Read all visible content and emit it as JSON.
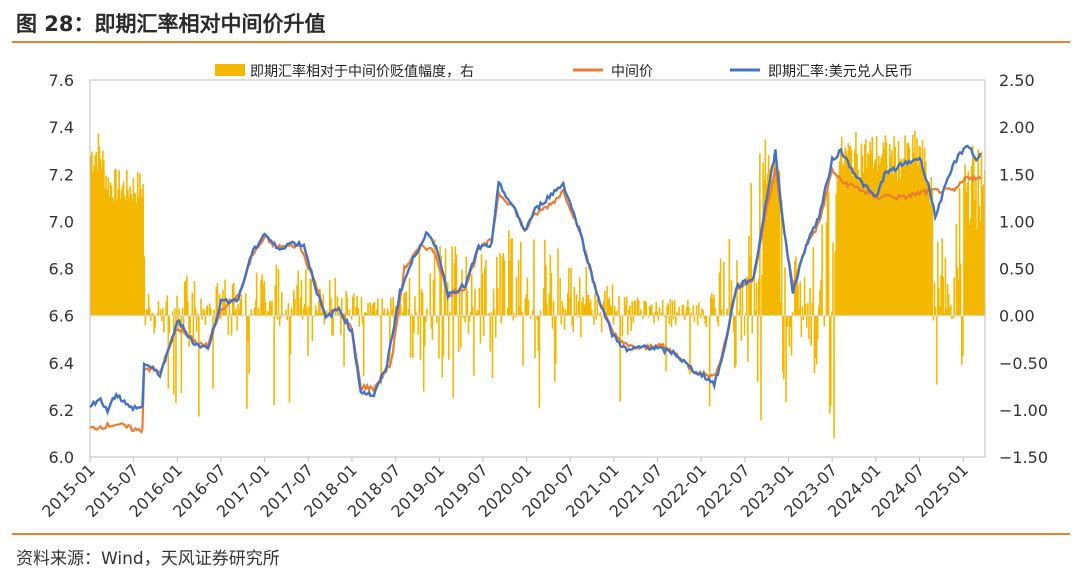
{
  "header": {
    "title": "图 28：即期汇率相对中间价升值"
  },
  "footer": {
    "source": "资料来源：Wind，天风证券研究所"
  },
  "colors": {
    "bars": "#f5b800",
    "mid": "#ed7d31",
    "spot": "#4472c4",
    "accent": "#e8822a"
  },
  "chart_data": {
    "type": "bar+line",
    "title": "即期汇率相对中间价升值",
    "x_labels": [
      "2015-01",
      "2015-07",
      "2016-01",
      "2016-07",
      "2017-01",
      "2017-07",
      "2018-01",
      "2018-07",
      "2019-01",
      "2019-07",
      "2020-01",
      "2020-07",
      "2021-01",
      "2021-07",
      "2022-01",
      "2022-07",
      "2023-01",
      "2023-07",
      "2024-01",
      "2024-07",
      "2025-01"
    ],
    "left_axis": {
      "ylim": [
        6.0,
        7.6
      ],
      "ticks": [
        "6.0",
        "6.2",
        "6.4",
        "6.6",
        "6.8",
        "7.0",
        "7.2",
        "7.4",
        "7.6"
      ]
    },
    "right_axis": {
      "ylim": [
        -1.5,
        2.5
      ],
      "ticks": [
        "−1.50",
        "−1.00",
        "−0.50",
        "0.00",
        "0.50",
        "1.00",
        "1.50",
        "2.00",
        "2.50"
      ]
    },
    "legend": [
      {
        "name": "即期汇率相对于中间价贬值幅度，右",
        "kind": "bar"
      },
      {
        "name": "中间价",
        "kind": "line"
      },
      {
        "name": "即期汇率:美元兑人民币",
        "kind": "line"
      }
    ],
    "series": [
      {
        "name": "中间价",
        "axis": "left",
        "points": [
          [
            2015.0,
            6.12
          ],
          [
            2015.3,
            6.14
          ],
          [
            2015.58,
            6.11
          ],
          [
            2015.6,
            6.12
          ],
          [
            2015.62,
            6.38
          ],
          [
            2015.8,
            6.36
          ],
          [
            2016.0,
            6.55
          ],
          [
            2016.2,
            6.49
          ],
          [
            2016.35,
            6.47
          ],
          [
            2016.5,
            6.63
          ],
          [
            2016.7,
            6.68
          ],
          [
            2016.85,
            6.85
          ],
          [
            2017.0,
            6.93
          ],
          [
            2017.15,
            6.89
          ],
          [
            2017.4,
            6.9
          ],
          [
            2017.6,
            6.72
          ],
          [
            2017.7,
            6.6
          ],
          [
            2017.85,
            6.63
          ],
          [
            2018.0,
            6.54
          ],
          [
            2018.1,
            6.3
          ],
          [
            2018.25,
            6.29
          ],
          [
            2018.45,
            6.4
          ],
          [
            2018.6,
            6.8
          ],
          [
            2018.8,
            6.9
          ],
          [
            2018.95,
            6.87
          ],
          [
            2019.1,
            6.69
          ],
          [
            2019.3,
            6.72
          ],
          [
            2019.45,
            6.88
          ],
          [
            2019.6,
            6.92
          ],
          [
            2019.68,
            7.12
          ],
          [
            2019.85,
            7.06
          ],
          [
            2019.98,
            6.96
          ],
          [
            2020.1,
            7.03
          ],
          [
            2020.3,
            7.08
          ],
          [
            2020.42,
            7.13
          ],
          [
            2020.6,
            6.97
          ],
          [
            2020.8,
            6.7
          ],
          [
            2020.98,
            6.53
          ],
          [
            2021.15,
            6.47
          ],
          [
            2021.35,
            6.46
          ],
          [
            2021.5,
            6.48
          ],
          [
            2021.7,
            6.44
          ],
          [
            2021.9,
            6.37
          ],
          [
            2022.05,
            6.35
          ],
          [
            2022.15,
            6.34
          ],
          [
            2022.25,
            6.45
          ],
          [
            2022.4,
            6.71
          ],
          [
            2022.6,
            6.76
          ],
          [
            2022.75,
            7.05
          ],
          [
            2022.85,
            7.22
          ],
          [
            2022.95,
            6.96
          ],
          [
            2023.05,
            6.72
          ],
          [
            2023.2,
            6.9
          ],
          [
            2023.35,
            6.99
          ],
          [
            2023.5,
            7.22
          ],
          [
            2023.6,
            7.17
          ],
          [
            2023.8,
            7.14
          ],
          [
            2024.0,
            7.1
          ],
          [
            2024.1,
            7.11
          ],
          [
            2024.3,
            7.1
          ],
          [
            2024.5,
            7.12
          ],
          [
            2024.65,
            7.13
          ],
          [
            2024.75,
            7.13
          ],
          [
            2024.9,
            7.13
          ],
          [
            2025.05,
            7.19
          ],
          [
            2025.2,
            7.18
          ]
        ]
      },
      {
        "name": "即期汇率:美元兑人民币",
        "axis": "left",
        "points": [
          [
            2015.0,
            6.21
          ],
          [
            2015.1,
            6.25
          ],
          [
            2015.2,
            6.2
          ],
          [
            2015.3,
            6.27
          ],
          [
            2015.45,
            6.21
          ],
          [
            2015.6,
            6.21
          ],
          [
            2015.62,
            6.4
          ],
          [
            2015.8,
            6.35
          ],
          [
            2015.9,
            6.45
          ],
          [
            2016.0,
            6.58
          ],
          [
            2016.2,
            6.48
          ],
          [
            2016.35,
            6.46
          ],
          [
            2016.5,
            6.66
          ],
          [
            2016.7,
            6.67
          ],
          [
            2016.85,
            6.86
          ],
          [
            2017.0,
            6.95
          ],
          [
            2017.15,
            6.88
          ],
          [
            2017.3,
            6.91
          ],
          [
            2017.45,
            6.9
          ],
          [
            2017.6,
            6.7
          ],
          [
            2017.7,
            6.59
          ],
          [
            2017.85,
            6.63
          ],
          [
            2018.0,
            6.53
          ],
          [
            2018.1,
            6.28
          ],
          [
            2018.25,
            6.26
          ],
          [
            2018.4,
            6.39
          ],
          [
            2018.55,
            6.7
          ],
          [
            2018.7,
            6.84
          ],
          [
            2018.85,
            6.95
          ],
          [
            2018.98,
            6.88
          ],
          [
            2019.1,
            6.69
          ],
          [
            2019.3,
            6.73
          ],
          [
            2019.45,
            6.89
          ],
          [
            2019.6,
            6.9
          ],
          [
            2019.68,
            7.16
          ],
          [
            2019.85,
            7.06
          ],
          [
            2019.98,
            6.96
          ],
          [
            2020.1,
            7.05
          ],
          [
            2020.3,
            7.12
          ],
          [
            2020.42,
            7.16
          ],
          [
            2020.6,
            6.97
          ],
          [
            2020.8,
            6.7
          ],
          [
            2020.98,
            6.52
          ],
          [
            2021.15,
            6.45
          ],
          [
            2021.35,
            6.47
          ],
          [
            2021.5,
            6.46
          ],
          [
            2021.7,
            6.44
          ],
          [
            2021.9,
            6.37
          ],
          [
            2022.05,
            6.34
          ],
          [
            2022.15,
            6.31
          ],
          [
            2022.25,
            6.43
          ],
          [
            2022.4,
            6.72
          ],
          [
            2022.6,
            6.76
          ],
          [
            2022.75,
            7.1
          ],
          [
            2022.85,
            7.3
          ],
          [
            2022.95,
            6.96
          ],
          [
            2023.05,
            6.7
          ],
          [
            2023.2,
            6.9
          ],
          [
            2023.35,
            7.02
          ],
          [
            2023.5,
            7.26
          ],
          [
            2023.6,
            7.3
          ],
          [
            2023.8,
            7.18
          ],
          [
            2024.0,
            7.1
          ],
          [
            2024.1,
            7.2
          ],
          [
            2024.3,
            7.24
          ],
          [
            2024.5,
            7.27
          ],
          [
            2024.6,
            7.16
          ],
          [
            2024.68,
            7.02
          ],
          [
            2024.75,
            7.1
          ],
          [
            2024.9,
            7.25
          ],
          [
            2025.05,
            7.33
          ],
          [
            2025.15,
            7.26
          ],
          [
            2025.2,
            7.29
          ]
        ]
      }
    ],
    "bars_right_axis_envelope": [
      [
        2015.0,
        1.95
      ],
      [
        2015.1,
        2.0
      ],
      [
        2015.2,
        1.6
      ],
      [
        2015.35,
        1.55
      ],
      [
        2015.6,
        1.55
      ],
      [
        2015.62,
        0.25
      ],
      [
        2015.8,
        0.25
      ],
      [
        2016.0,
        0.35
      ],
      [
        2016.15,
        0.5
      ],
      [
        2016.3,
        0.3
      ],
      [
        2016.5,
        0.4
      ],
      [
        2016.8,
        0.45
      ],
      [
        2017.0,
        0.55
      ],
      [
        2017.3,
        0.6
      ],
      [
        2017.7,
        0.5
      ],
      [
        2018.0,
        0.25
      ],
      [
        2018.2,
        0.2
      ],
      [
        2018.5,
        0.2
      ],
      [
        2018.7,
        0.8
      ],
      [
        2019.0,
        0.9
      ],
      [
        2019.3,
        0.7
      ],
      [
        2019.5,
        0.9
      ],
      [
        2019.7,
        0.95
      ],
      [
        2019.9,
        0.9
      ],
      [
        2020.2,
        0.9
      ],
      [
        2020.5,
        0.7
      ],
      [
        2020.8,
        0.4
      ],
      [
        2021.2,
        0.25
      ],
      [
        2021.6,
        0.2
      ],
      [
        2022.0,
        0.15
      ],
      [
        2022.3,
        0.85
      ],
      [
        2022.5,
        1.2
      ],
      [
        2022.7,
        1.9
      ],
      [
        2022.9,
        1.7
      ],
      [
        2023.1,
        0.5
      ],
      [
        2023.3,
        0.8
      ],
      [
        2023.55,
        1.9
      ],
      [
        2023.75,
        1.95
      ],
      [
        2024.0,
        1.95
      ],
      [
        2024.3,
        1.9
      ],
      [
        2024.5,
        2.0
      ],
      [
        2024.7,
        1.2
      ],
      [
        2024.85,
        0.5
      ],
      [
        2025.0,
        1.9
      ],
      [
        2025.2,
        1.8
      ]
    ]
  }
}
